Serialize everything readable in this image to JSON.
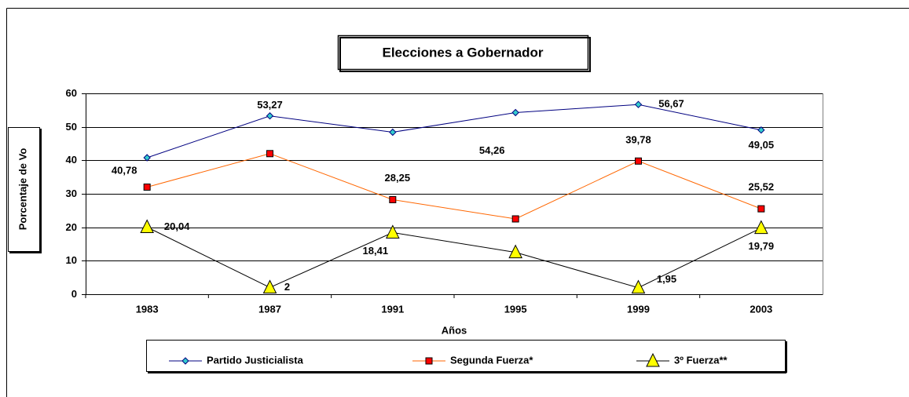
{
  "chart_data": {
    "type": "line",
    "title": "Elecciones a Gobernador",
    "x_label": "Años",
    "y_label": "Porcentaje de Vo",
    "categories": [
      "1983",
      "1987",
      "1991",
      "1995",
      "1999",
      "2003"
    ],
    "ylim": [
      0,
      60
    ],
    "yticks": [
      0,
      10,
      20,
      30,
      40,
      50,
      60
    ],
    "grid": true,
    "series": [
      {
        "name": "Partido Justicialista",
        "color": "#000080",
        "marker_color": "#33cccc",
        "marker": "diamond",
        "values": [
          40.78,
          53.27,
          48.4,
          54.26,
          56.67,
          49.05
        ],
        "value_labels": [
          "40,78",
          "53,27",
          null,
          "54,26",
          "56,67",
          "49,05"
        ]
      },
      {
        "name": "Segunda Fuerza*",
        "color": "#ff6600",
        "marker_color": "#ff0000",
        "marker": "square",
        "values": [
          32,
          42,
          28.25,
          22.5,
          39.78,
          25.52
        ],
        "value_labels": [
          null,
          null,
          "28,25",
          null,
          "39,78",
          "25,52"
        ]
      },
      {
        "name": "3º Fuerza**",
        "color": "#000000",
        "marker_color": "#ffff00",
        "marker": "triangle",
        "values": [
          20.04,
          2,
          18.41,
          12.5,
          1.95,
          19.79
        ],
        "value_labels": [
          "20,04",
          "2",
          "18,41",
          null,
          "1,95",
          "19,79"
        ]
      }
    ]
  }
}
